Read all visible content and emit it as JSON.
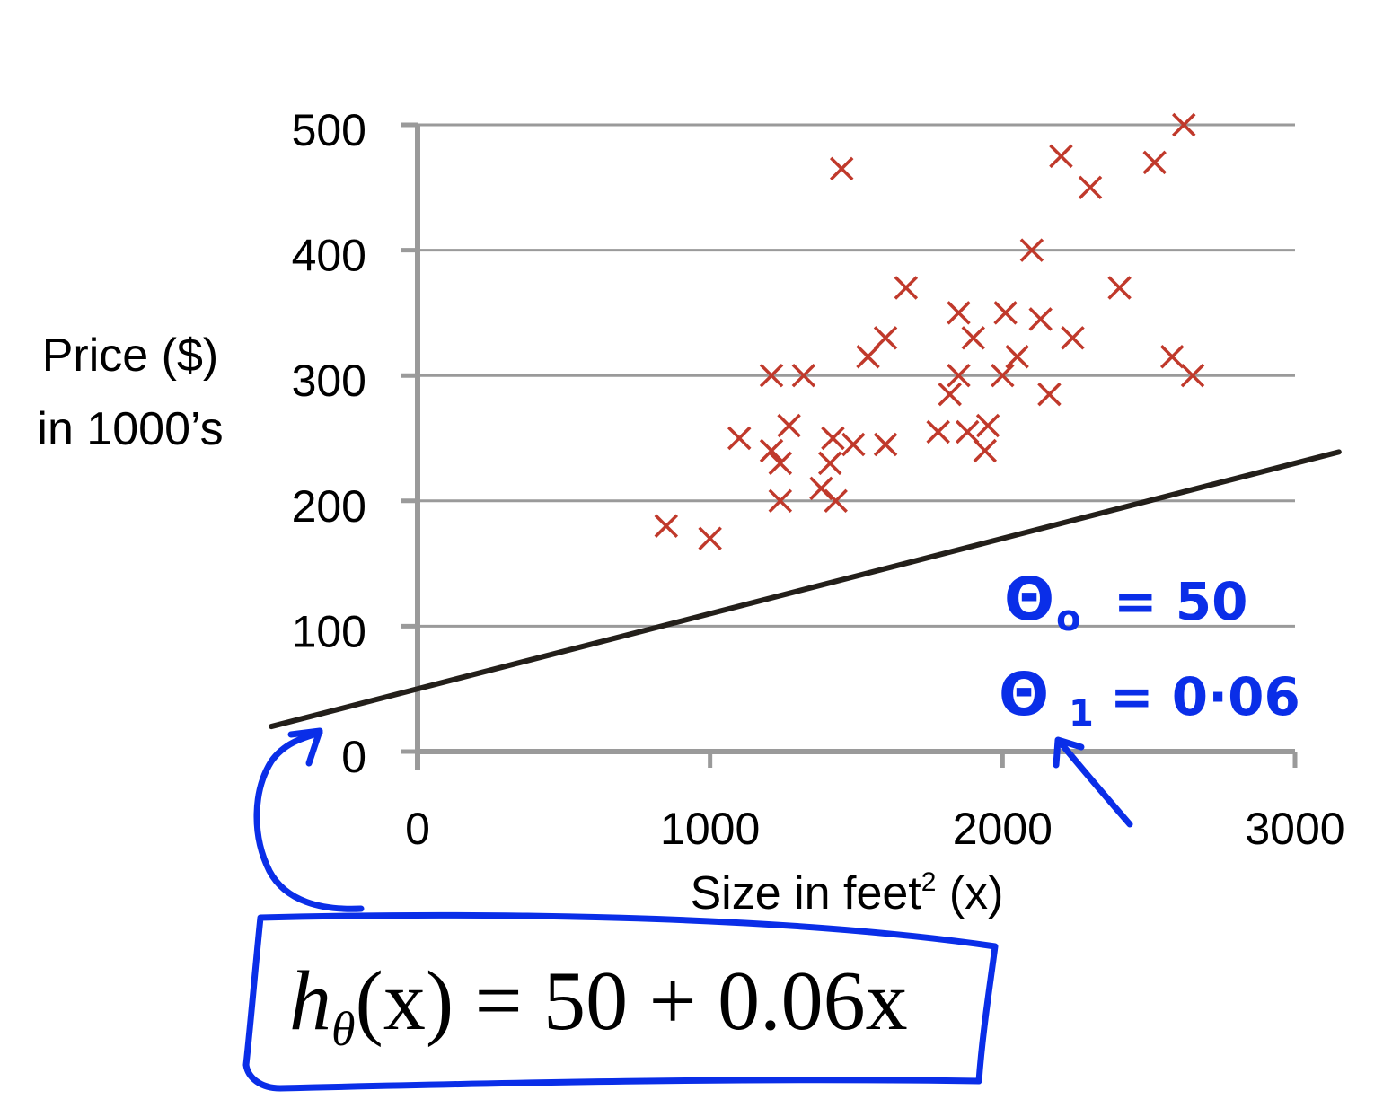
{
  "chart_data": {
    "type": "scatter",
    "xlabel_main": "Size in feet",
    "xlabel_sup": "2",
    "xlabel_tail": " (x)",
    "ylabel_lines": [
      "Price ($)",
      "in 1000’s"
    ],
    "xlim": [
      0,
      3000
    ],
    "ylim": [
      0,
      500
    ],
    "x_ticks": [
      0,
      1000,
      2000,
      3000
    ],
    "y_ticks": [
      0,
      100,
      200,
      300,
      400,
      500
    ],
    "x_tick_labels": [
      "0",
      "1000",
      "2000",
      "3000"
    ],
    "y_tick_labels": [
      "0",
      "100",
      "200",
      "300",
      "400",
      "500"
    ],
    "grid": "horizontal",
    "marker_color": "#c0392b",
    "line_color": "#231f1a",
    "points": [
      {
        "x": 850,
        "y": 180
      },
      {
        "x": 1000,
        "y": 170
      },
      {
        "x": 1100,
        "y": 250
      },
      {
        "x": 1210,
        "y": 300
      },
      {
        "x": 1210,
        "y": 240
      },
      {
        "x": 1240,
        "y": 230
      },
      {
        "x": 1240,
        "y": 200
      },
      {
        "x": 1270,
        "y": 260
      },
      {
        "x": 1320,
        "y": 300
      },
      {
        "x": 1380,
        "y": 210
      },
      {
        "x": 1410,
        "y": 230
      },
      {
        "x": 1420,
        "y": 250
      },
      {
        "x": 1430,
        "y": 200
      },
      {
        "x": 1450,
        "y": 465
      },
      {
        "x": 1490,
        "y": 245
      },
      {
        "x": 1540,
        "y": 315
      },
      {
        "x": 1600,
        "y": 245
      },
      {
        "x": 1600,
        "y": 330
      },
      {
        "x": 1670,
        "y": 370
      },
      {
        "x": 1780,
        "y": 255
      },
      {
        "x": 1820,
        "y": 285
      },
      {
        "x": 1850,
        "y": 350
      },
      {
        "x": 1850,
        "y": 300
      },
      {
        "x": 1880,
        "y": 255
      },
      {
        "x": 1900,
        "y": 330
      },
      {
        "x": 1940,
        "y": 240
      },
      {
        "x": 1950,
        "y": 260
      },
      {
        "x": 2000,
        "y": 300
      },
      {
        "x": 2010,
        "y": 350
      },
      {
        "x": 2050,
        "y": 315
      },
      {
        "x": 2100,
        "y": 400
      },
      {
        "x": 2130,
        "y": 345
      },
      {
        "x": 2160,
        "y": 285
      },
      {
        "x": 2200,
        "y": 475
      },
      {
        "x": 2240,
        "y": 330
      },
      {
        "x": 2300,
        "y": 450
      },
      {
        "x": 2400,
        "y": 370
      },
      {
        "x": 2520,
        "y": 470
      },
      {
        "x": 2580,
        "y": 315
      },
      {
        "x": 2620,
        "y": 500
      },
      {
        "x": 2650,
        "y": 300
      }
    ],
    "fit_line": {
      "intercept": 50,
      "slope": 0.06,
      "x_range": [
        -500,
        3150
      ]
    }
  },
  "annotations": {
    "theta0_symbol": "Θ",
    "theta0_sub": "o",
    "theta0_value": "= 50",
    "theta1_symbol": "Θ",
    "theta1_sub": "1",
    "theta1_value": "= 0·06",
    "formula_h": "h",
    "formula_theta": "θ",
    "formula_rest": "(x) = 50 + 0.06x",
    "ink_color": "#0a2ee8"
  }
}
